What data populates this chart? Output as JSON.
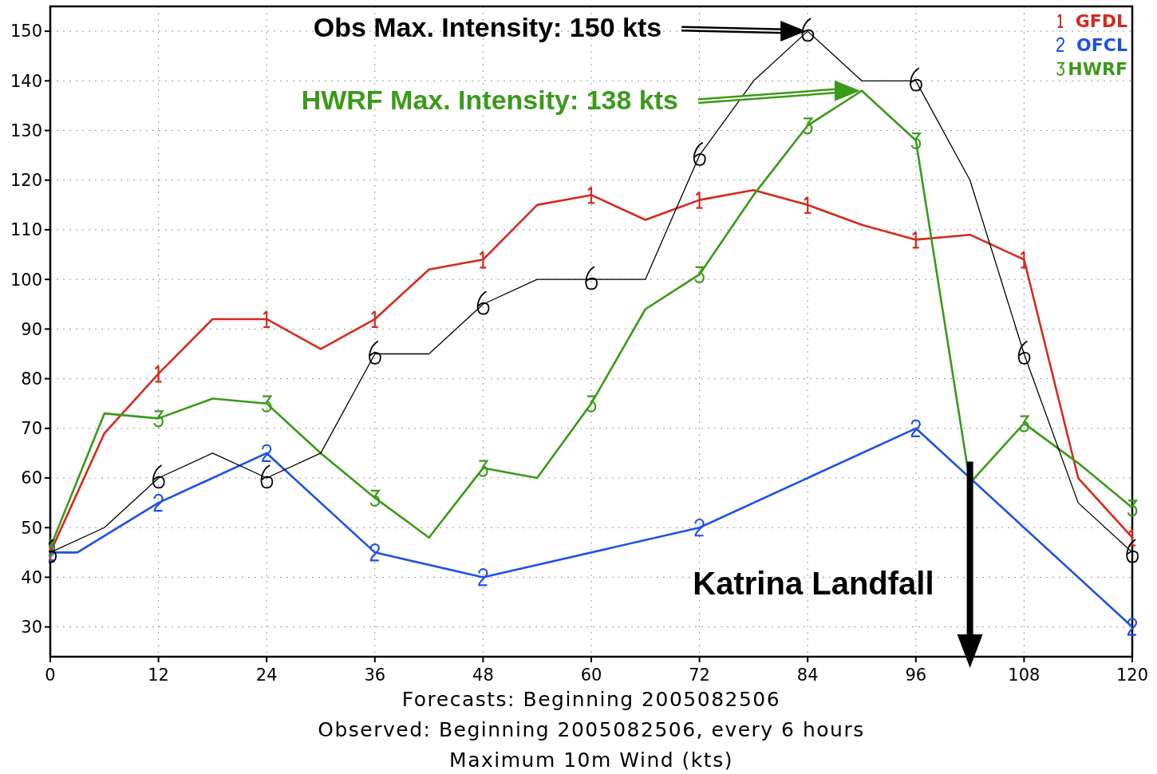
{
  "chart_data": {
    "type": "line",
    "xlabel": "Forecasts: Beginning 2005082506\nObserved: Beginning 2005082506, every 6 hours\nMaximum 10m Wind (kts)",
    "xlim": [
      0,
      120
    ],
    "xticks": [
      0,
      12,
      24,
      36,
      48,
      60,
      72,
      84,
      96,
      108,
      120
    ],
    "ylim": [
      24,
      155
    ],
    "yticks": [
      30,
      40,
      50,
      60,
      70,
      80,
      90,
      100,
      110,
      120,
      130,
      140,
      150
    ],
    "grid": true,
    "legend": "top right",
    "series": [
      {
        "name": "GFDL",
        "color": "#d42a1e",
        "x": [
          0,
          6,
          12,
          18,
          24,
          30,
          36,
          42,
          48,
          54,
          60,
          66,
          72,
          78,
          84,
          90,
          96,
          102,
          108,
          114,
          120
        ],
        "values": [
          45,
          69,
          81,
          92,
          92,
          86,
          92,
          102,
          104,
          115,
          117,
          112,
          116,
          118,
          115,
          111,
          108,
          109,
          104,
          60,
          48
        ]
      },
      {
        "name": "OFCL",
        "color": "#1e50e8",
        "marker": "cross",
        "x": [
          0,
          3,
          12,
          24,
          36,
          48,
          72,
          96,
          120
        ],
        "values": [
          45,
          45,
          55,
          65,
          45,
          40,
          50,
          70,
          30
        ]
      },
      {
        "name": "HWRF",
        "color": "#3a9a1a",
        "marker": "cross",
        "x": [
          0,
          6,
          12,
          18,
          24,
          30,
          36,
          42,
          48,
          54,
          60,
          66,
          72,
          78,
          84,
          90,
          96,
          102,
          108,
          114,
          120
        ],
        "values": [
          46,
          73,
          72,
          76,
          75,
          65,
          56,
          48,
          62,
          60,
          75,
          94,
          101,
          117,
          131,
          138,
          128,
          59,
          71,
          63,
          54
        ]
      },
      {
        "color": "#000000",
        "marker": "cross",
        "x": [
          0,
          6,
          12,
          18,
          24,
          30,
          36,
          42,
          48,
          54,
          60,
          66,
          72,
          78,
          84,
          90,
          96,
          102,
          108,
          114,
          120
        ],
        "values": [
          45,
          50,
          60,
          65,
          60,
          65,
          85,
          85,
          95,
          100,
          100,
          100,
          125,
          140,
          150,
          140,
          140,
          120,
          85,
          55,
          45
        ]
      }
    ],
    "ref_lines": [
      {
        "axis": "x",
        "value": 102,
        "label": "Katrina Landfall",
        "color": "#000000"
      }
    ],
    "annotations": [
      "Obs Max. Intensity: 150 kts",
      "HWRF Max. Intensity: 138 kts"
    ]
  }
}
